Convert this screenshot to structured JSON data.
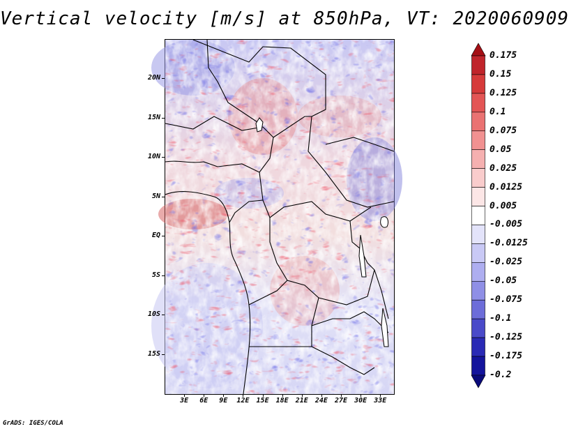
{
  "title": "Vertical velocity [m/s] at 850hPa, VT: 2020060909",
  "credit": "GrADS: IGES/COLA",
  "map": {
    "lon_range": [
      0,
      35
    ],
    "lat_range": [
      -20,
      25
    ],
    "lat_labels": [
      {
        "value": 20,
        "label": "20N"
      },
      {
        "value": 15,
        "label": "15N"
      },
      {
        "value": 10,
        "label": "10N"
      },
      {
        "value": 5,
        "label": "5N"
      },
      {
        "value": 0,
        "label": "EQ"
      },
      {
        "value": -5,
        "label": "5S"
      },
      {
        "value": -10,
        "label": "10S"
      },
      {
        "value": -15,
        "label": "15S"
      }
    ],
    "lon_labels": [
      {
        "value": 3,
        "label": "3E"
      },
      {
        "value": 6,
        "label": "6E"
      },
      {
        "value": 9,
        "label": "9E"
      },
      {
        "value": 12,
        "label": "12E"
      },
      {
        "value": 15,
        "label": "15E"
      },
      {
        "value": 18,
        "label": "18E"
      },
      {
        "value": 21,
        "label": "21E"
      },
      {
        "value": 24,
        "label": "24E"
      },
      {
        "value": 27,
        "label": "27E"
      },
      {
        "value": 30,
        "label": "30E"
      },
      {
        "value": 33,
        "label": "33E"
      }
    ]
  },
  "colorbar": {
    "levels": [
      "0.175",
      "0.15",
      "0.125",
      "0.1",
      "0.075",
      "0.05",
      "0.025",
      "0.0125",
      "0.005",
      "-0.005",
      "-0.0125",
      "-0.025",
      "-0.05",
      "-0.075",
      "-0.1",
      "-0.125",
      "-0.175",
      "-0.2"
    ],
    "colors": [
      "#a50f15",
      "#c0242b",
      "#d63a3a",
      "#e35555",
      "#ea7272",
      "#f19191",
      "#f5b0b0",
      "#f9cccc",
      "#fce6e6",
      "#ffffff",
      "#e3e3fa",
      "#c9c9f5",
      "#aeaef0",
      "#8f8fe6",
      "#6d6dd9",
      "#4a4ac9",
      "#2a2ab5",
      "#14149c",
      "#0a0a7a"
    ]
  }
}
